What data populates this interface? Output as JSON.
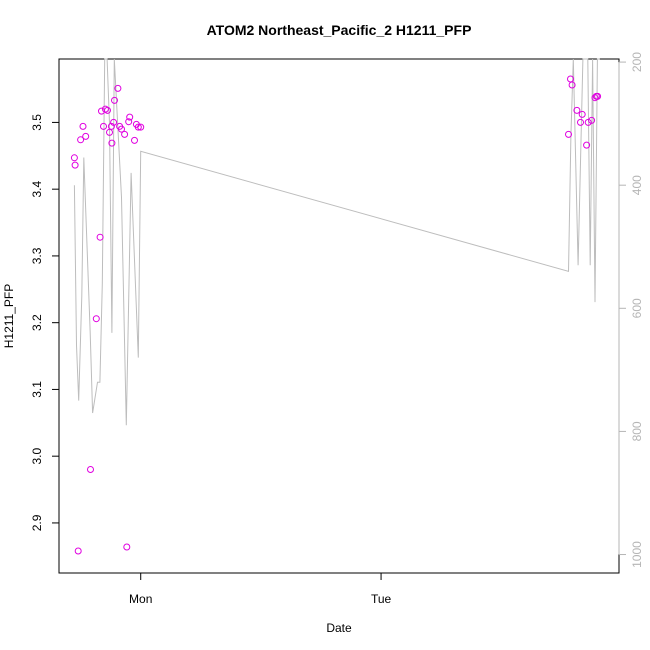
{
  "chart_data": {
    "type": "scatter",
    "title": "ATOM2 Northeast_Pacific_2 H1211_PFP",
    "xlabel": "Date",
    "ylabel": "H1211_PFP",
    "x_ticks": [
      {
        "label": "Mon",
        "value": 1.0
      },
      {
        "label": "Tue",
        "value": 2.0
      }
    ],
    "xlim": [
      0.66,
      2.99
    ],
    "y_ticks": [
      2.9,
      3.0,
      3.1,
      3.2,
      3.3,
      3.4,
      3.5
    ],
    "ylim": [
      2.825,
      3.595
    ],
    "y2_ticks": [
      200,
      400,
      600,
      800,
      1000
    ],
    "y2lim": [
      1030,
      195
    ],
    "y2_reversed": true,
    "grid": false,
    "series": [
      {
        "kind": "points",
        "color": "#e000e0",
        "points": [
          [
            0.724,
            3.447
          ],
          [
            0.727,
            3.436
          ],
          [
            0.74,
            2.858
          ],
          [
            0.75,
            3.474
          ],
          [
            0.76,
            3.494
          ],
          [
            0.771,
            3.479
          ],
          [
            0.791,
            2.98
          ],
          [
            0.815,
            3.206
          ],
          [
            0.831,
            3.328
          ],
          [
            0.837,
            3.517
          ],
          [
            0.845,
            3.494
          ],
          [
            0.853,
            3.52
          ],
          [
            0.862,
            3.518
          ],
          [
            0.87,
            3.485
          ],
          [
            0.878,
            3.494
          ],
          [
            0.88,
            3.469
          ],
          [
            0.887,
            3.5
          ],
          [
            0.891,
            3.533
          ],
          [
            0.905,
            3.551
          ],
          [
            0.912,
            3.494
          ],
          [
            0.92,
            3.49
          ],
          [
            0.933,
            3.482
          ],
          [
            0.942,
            2.864
          ],
          [
            0.95,
            3.501
          ],
          [
            0.954,
            3.508
          ],
          [
            0.974,
            3.473
          ],
          [
            0.982,
            3.497
          ],
          [
            0.99,
            3.493
          ],
          [
            1.0,
            3.493
          ],
          [
            2.78,
            3.482
          ],
          [
            2.788,
            3.565
          ],
          [
            2.795,
            3.556
          ],
          [
            2.815,
            3.518
          ],
          [
            2.83,
            3.5
          ],
          [
            2.837,
            3.512
          ],
          [
            2.855,
            3.466
          ],
          [
            2.862,
            3.5
          ],
          [
            2.876,
            3.503
          ],
          [
            2.89,
            3.537
          ],
          [
            2.896,
            3.539
          ],
          [
            2.901,
            3.539
          ]
        ]
      },
      {
        "kind": "line",
        "color": "#bdbdbd",
        "axis": "right",
        "points": [
          [
            0.724,
            400
          ],
          [
            0.733,
            660
          ],
          [
            0.742,
            750
          ],
          [
            0.755,
            580
          ],
          [
            0.763,
            355
          ],
          [
            0.79,
            640
          ],
          [
            0.8,
            770
          ],
          [
            0.82,
            720
          ],
          [
            0.83,
            720
          ],
          [
            0.84,
            560
          ],
          [
            0.85,
            180
          ],
          [
            0.86,
            120
          ],
          [
            0.87,
            300
          ],
          [
            0.88,
            640
          ],
          [
            0.89,
            120
          ],
          [
            0.92,
            420
          ],
          [
            0.94,
            790
          ],
          [
            0.96,
            380
          ],
          [
            0.98,
            580
          ],
          [
            0.99,
            680
          ],
          [
            1.0,
            345
          ],
          [
            2.78,
            540
          ],
          [
            2.79,
            320
          ],
          [
            2.8,
            180
          ],
          [
            2.82,
            530
          ],
          [
            2.84,
            170
          ],
          [
            2.86,
            170
          ],
          [
            2.87,
            530
          ],
          [
            2.88,
            180
          ],
          [
            2.89,
            590
          ],
          [
            2.9,
            180
          ],
          [
            2.91,
            160
          ]
        ]
      }
    ]
  }
}
